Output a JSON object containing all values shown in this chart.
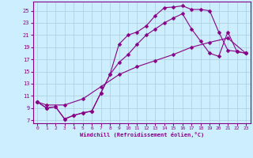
{
  "xlabel": "Windchill (Refroidissement éolien,°C)",
  "xlim": [
    -0.5,
    23.5
  ],
  "ylim": [
    6.5,
    26.5
  ],
  "xticks": [
    0,
    1,
    2,
    3,
    4,
    5,
    6,
    7,
    8,
    9,
    10,
    11,
    12,
    13,
    14,
    15,
    16,
    17,
    18,
    19,
    20,
    21,
    22,
    23
  ],
  "yticks": [
    7,
    9,
    11,
    13,
    15,
    17,
    19,
    21,
    23,
    25
  ],
  "bg_color": "#cceeff",
  "grid_color": "#aaccdd",
  "line_color": "#880088",
  "line1_x": [
    0,
    1,
    2,
    3,
    4,
    5,
    6,
    7,
    8,
    9,
    10,
    11,
    12,
    13,
    14,
    15,
    16,
    17,
    18,
    19,
    20,
    21,
    22,
    23
  ],
  "line1_y": [
    10,
    9,
    9.2,
    7.2,
    7.8,
    8.2,
    8.5,
    11.5,
    14.5,
    19.5,
    21.0,
    21.5,
    22.5,
    24.2,
    25.5,
    25.6,
    25.8,
    25.2,
    25.2,
    25.0,
    21.5,
    18.5,
    18.3,
    18.0
  ],
  "line2_x": [
    0,
    1,
    2,
    3,
    4,
    5,
    6,
    7,
    8,
    9,
    10,
    11,
    12,
    13,
    14,
    15,
    16,
    17,
    18,
    19,
    20,
    21,
    22,
    23
  ],
  "line2_y": [
    10,
    9,
    9.2,
    7.2,
    7.8,
    8.2,
    8.5,
    11.5,
    14.5,
    16.5,
    17.8,
    19.5,
    21.0,
    22.0,
    23.0,
    23.8,
    24.5,
    22.0,
    20.0,
    18.0,
    17.5,
    21.5,
    18.3,
    18.0
  ],
  "line3_x": [
    0,
    1,
    3,
    5,
    7,
    9,
    11,
    13,
    15,
    17,
    19,
    21,
    23
  ],
  "line3_y": [
    10,
    9.5,
    9.5,
    10.5,
    12.5,
    14.5,
    15.8,
    16.8,
    17.8,
    19.0,
    19.8,
    20.5,
    18.0
  ],
  "markersize": 2.5,
  "linewidth": 0.8
}
